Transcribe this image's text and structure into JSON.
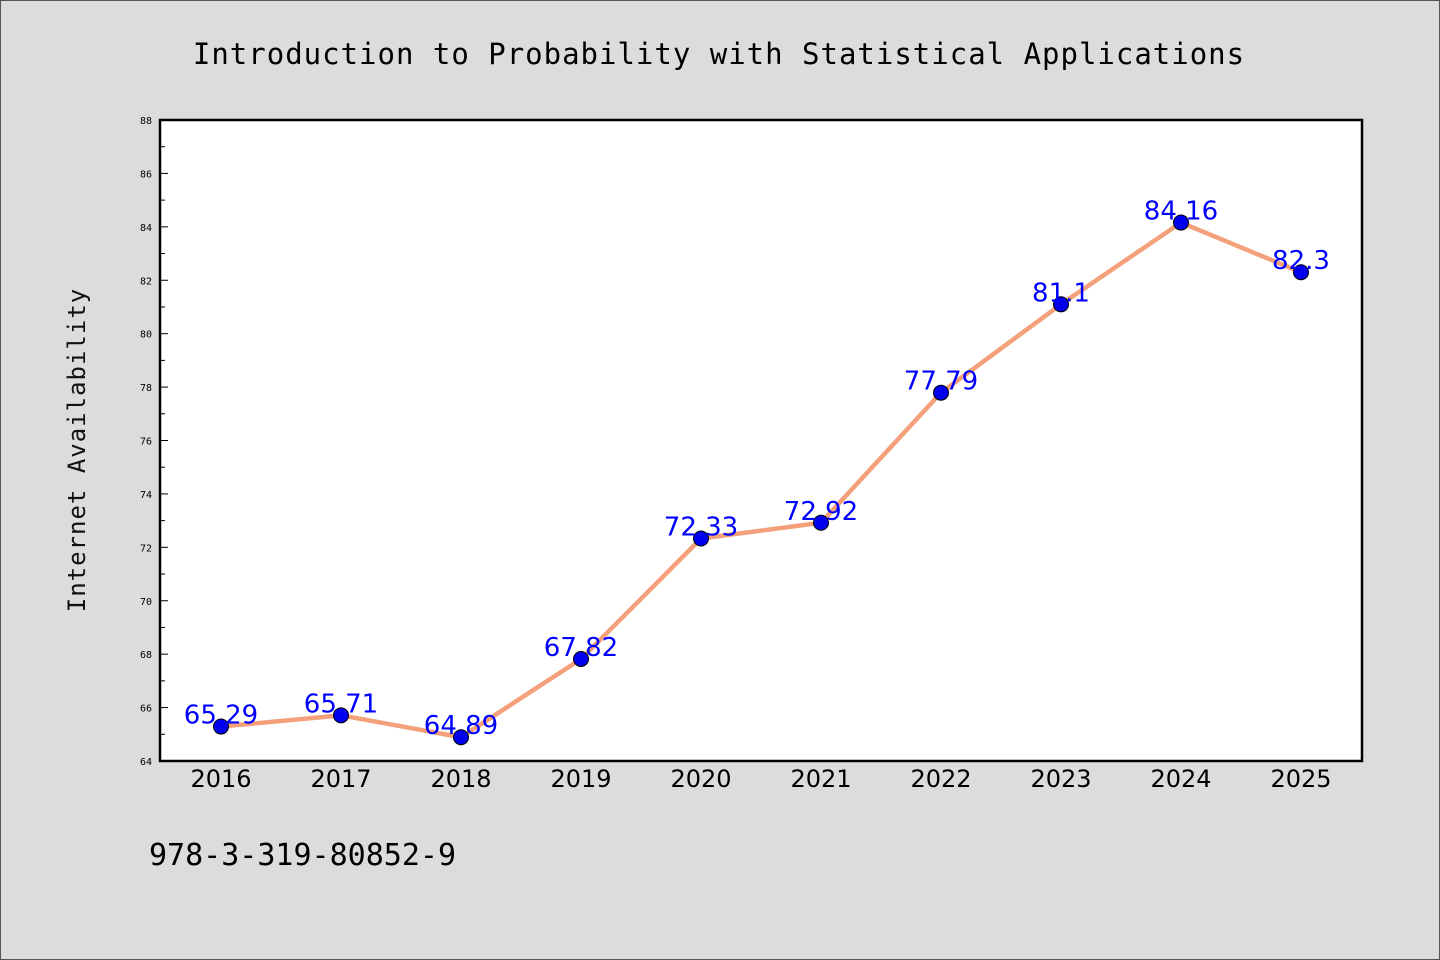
{
  "chart_data": {
    "type": "line",
    "title": "Introduction to Probability with Statistical Applications",
    "xlabel": "",
    "ylabel": "Internet Availability",
    "categories": [
      "2016",
      "2017",
      "2018",
      "2019",
      "2020",
      "2021",
      "2022",
      "2023",
      "2024",
      "2025"
    ],
    "values": [
      65.29,
      65.71,
      64.89,
      67.82,
      72.33,
      72.92,
      77.79,
      81.1,
      84.16,
      82.3
    ],
    "data_labels": [
      "65.29",
      "65.71",
      "64.89",
      "67.82",
      "72.33",
      "72.92",
      "77.79",
      "81.1",
      "84.16",
      "82.3"
    ],
    "ylim": [
      64,
      88
    ],
    "yticks": [
      64,
      66,
      68,
      70,
      72,
      74,
      76,
      78,
      80,
      82,
      84,
      86,
      88
    ],
    "grid": false,
    "line_color": "#f4a07a",
    "marker_color": "#0000ee",
    "label_color": "#0000ff"
  },
  "footer_text": "978-3-319-80852-9"
}
